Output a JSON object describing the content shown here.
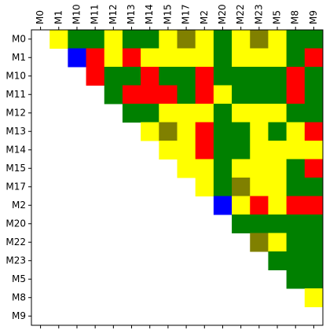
{
  "chart_data": {
    "type": "heatmap",
    "categories": [
      "M0",
      "M1",
      "M10",
      "M11",
      "M12",
      "M13",
      "M14",
      "M15",
      "M17",
      "M2",
      "M20",
      "M22",
      "M23",
      "M5",
      "M8",
      "M9"
    ],
    "cells": [
      [
        null,
        "yellow",
        "green",
        "green",
        "yellow",
        "green",
        "green",
        "yellow",
        "olive",
        "yellow",
        "green",
        "yellow",
        "olive",
        "yellow",
        "green",
        "green"
      ],
      [
        null,
        null,
        "blue",
        "red",
        "yellow",
        "red",
        "yellow",
        "yellow",
        "yellow",
        "yellow",
        "green",
        "yellow",
        "yellow",
        "yellow",
        "green",
        "red"
      ],
      [
        null,
        null,
        null,
        "red",
        "green",
        "green",
        "red",
        "green",
        "green",
        "red",
        "green",
        "green",
        "green",
        "green",
        "red",
        "green"
      ],
      [
        null,
        null,
        null,
        null,
        "green",
        "red",
        "red",
        "red",
        "green",
        "red",
        "yellow",
        "green",
        "green",
        "green",
        "red",
        "green"
      ],
      [
        null,
        null,
        null,
        null,
        null,
        "green",
        "green",
        "yellow",
        "yellow",
        "yellow",
        "green",
        "yellow",
        "yellow",
        "yellow",
        "green",
        "green"
      ],
      [
        null,
        null,
        null,
        null,
        null,
        null,
        "yellow",
        "olive",
        "yellow",
        "red",
        "green",
        "green",
        "yellow",
        "green",
        "yellow",
        "red"
      ],
      [
        null,
        null,
        null,
        null,
        null,
        null,
        null,
        "yellow",
        "yellow",
        "red",
        "green",
        "green",
        "yellow",
        "yellow",
        "yellow",
        "yellow"
      ],
      [
        null,
        null,
        null,
        null,
        null,
        null,
        null,
        null,
        "yellow",
        "yellow",
        "green",
        "yellow",
        "yellow",
        "yellow",
        "green",
        "red"
      ],
      [
        null,
        null,
        null,
        null,
        null,
        null,
        null,
        null,
        null,
        "yellow",
        "green",
        "olive",
        "yellow",
        "yellow",
        "green",
        "green"
      ],
      [
        null,
        null,
        null,
        null,
        null,
        null,
        null,
        null,
        null,
        null,
        "blue",
        "yellow",
        "red",
        "yellow",
        "red",
        "red"
      ],
      [
        null,
        null,
        null,
        null,
        null,
        null,
        null,
        null,
        null,
        null,
        null,
        "green",
        "green",
        "green",
        "green",
        "green"
      ],
      [
        null,
        null,
        null,
        null,
        null,
        null,
        null,
        null,
        null,
        null,
        null,
        null,
        "olive",
        "yellow",
        "green",
        "green"
      ],
      [
        null,
        null,
        null,
        null,
        null,
        null,
        null,
        null,
        null,
        null,
        null,
        null,
        null,
        "green",
        "green",
        "green"
      ],
      [
        null,
        null,
        null,
        null,
        null,
        null,
        null,
        null,
        null,
        null,
        null,
        null,
        null,
        null,
        "green",
        "green"
      ],
      [
        null,
        null,
        null,
        null,
        null,
        null,
        null,
        null,
        null,
        null,
        null,
        null,
        null,
        null,
        null,
        "yellow"
      ],
      [
        null,
        null,
        null,
        null,
        null,
        null,
        null,
        null,
        null,
        null,
        null,
        null,
        null,
        null,
        null,
        null
      ]
    ]
  }
}
